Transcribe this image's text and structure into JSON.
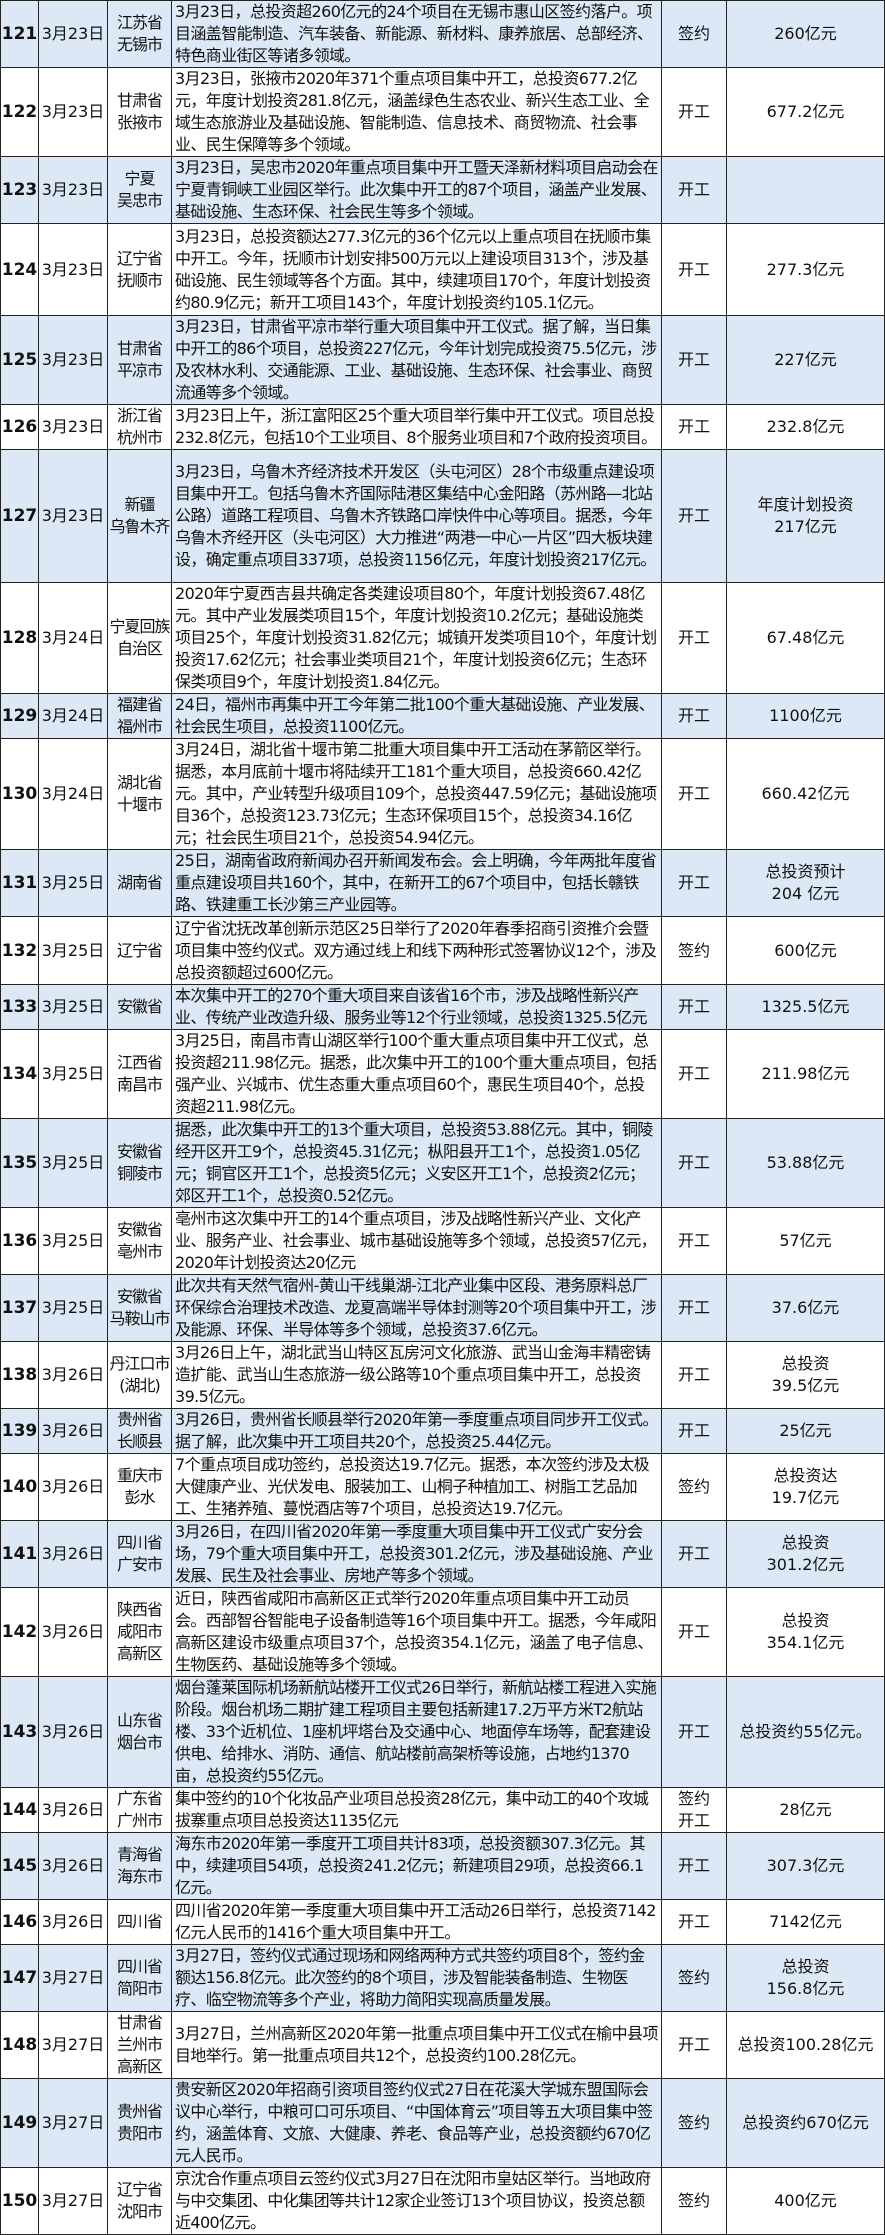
{
  "colors": {
    "row_alt": "#dce8f6",
    "border": "#222222"
  },
  "rows": [
    {
      "no": "121",
      "date": "3月23日",
      "region": "江苏省\n无锡市",
      "desc": "3月23日，总投资超260亿元的24个项目在无锡市惠山区签约落户。项目涵盖智能制造、汽车装备、新能源、新材料、康养旅居、总部经济、特色商业街区等诸多领域。",
      "type": "签约",
      "amount": "260亿元"
    },
    {
      "no": "122",
      "date": "3月23日",
      "region": "甘肃省\n张掖市",
      "desc": "3月23日，张掖市2020年371个重点项目集中开工，总投资677.2亿元，年度计划投资281.8亿元，涵盖绿色生态农业、新兴生态工业、全域生态旅游业及基础设施、智能制造、信息技术、商贸物流、社会事业、民生保障等多个领域。",
      "type": "开工",
      "amount": "677.2亿元"
    },
    {
      "no": "123",
      "date": "3月23日",
      "region": "宁夏\n吴忠市",
      "desc": "3月23日，吴忠市2020年重点项目集中开工暨天泽新材料项目启动会在宁夏青铜峡工业园区举行。此次集中开工的87个项目，涵盖产业发展、基础设施、生态环保、社会民生等多个领域。",
      "type": "开工",
      "amount": ""
    },
    {
      "no": "124",
      "date": "3月23日",
      "region": "辽宁省\n抚顺市",
      "desc": "3月23日，总投资额达277.3亿元的36个亿元以上重点项目在抚顺市集中开工。今年，抚顺市计划安排500万元以上建设项目313个，涉及基础设施、民生领域等各个方面。其中，续建项目170个，年度计划投资约80.9亿元；新开工项目143个，年度计划投资约105.1亿元。",
      "type": "开工",
      "amount": "277.3亿元"
    },
    {
      "no": "125",
      "date": "3月23日",
      "region": "甘肃省\n平凉市",
      "desc": "3月23日，甘肃省平凉市举行重大项目集中开工仪式。据了解，当日集中开工的86个项目，总投资227亿元，今年计划完成投资75.5亿元，涉及农林水利、交通能源、工业、基础设施、生态环保、社会事业、商贸流通等多个领域。",
      "type": "开工",
      "amount": "227亿元"
    },
    {
      "no": "126",
      "date": "3月23日",
      "region": "浙江省\n杭州市",
      "desc": "3月23日上午，浙江富阳区25个重大项目举行集中开工仪式。项目总投232.8亿元，包括10个工业项目、8个服务业项目和7个政府投资项目。",
      "type": "开工",
      "amount": "232.8亿元"
    },
    {
      "no": "127",
      "date": "3月23日",
      "region": "新疆\n乌鲁木齐",
      "desc": "3月23日，乌鲁木齐经济技术开发区（头屯河区）28个市级重点建设项目集中开工。包括乌鲁木齐国际陆港区集结中心金阳路（苏州路—北站公路）道路工程项目、乌鲁木齐铁路口岸快件中心等项目。据悉，今年乌鲁木齐经开区（头屯河区）大力推进“两港一中心一片区”四大板块建设，确定重点项目337项，总投资1156亿元，年度计划投资217亿元。",
      "type": "开工",
      "amount": "年度计划投资\n217亿元"
    },
    {
      "no": "128",
      "date": "3月24日",
      "region": "宁夏回族\n自治区",
      "desc": "2020年宁夏西吉县共确定各类建设项目80个，年度计划投资67.48亿元。其中产业发展类项目15个，年度计划投资10.2亿元；基础设施类项目25个，年度计划投资31.82亿元；城镇开发类项目10个，年度计划投资17.62亿元；社会事业类项目21个，年度计划投资6亿元；生态环保类项目9个，年度计划投资1.84亿元。",
      "type": "开工",
      "amount": "67.48亿元"
    },
    {
      "no": "129",
      "date": "3月24日",
      "region": "福建省\n福州市",
      "desc": "24日，福州市再集中开工今年第二批100个重大基础设施、产业发展、社会民生项目，总投资1100亿元。",
      "type": "开工",
      "amount": "1100亿元"
    },
    {
      "no": "130",
      "date": "3月24日",
      "region": "湖北省\n十堰市",
      "desc": "3月24日，湖北省十堰市第二批重大项目集中开工活动在茅箭区举行。据悉，本月底前十堰市将陆续开工181个重大项目，总投资660.42亿元。其中，产业转型升级项目109个，总投资447.59亿元；基础设施项目36个，总投资123.73亿元；生态环保项目15个，总投资34.16亿元；社会民生项目21个，总投资54.94亿元。",
      "type": "开工",
      "amount": "660.42亿元"
    },
    {
      "no": "131",
      "date": "3月25日",
      "region": "湖南省",
      "desc": "25日，湖南省政府新闻办召开新闻发布会。会上明确，今年两批年度省重点建设项目共160个，其中，在新开工的67个项目中，包括长赣铁路、铁建重工长沙第三产业园等。",
      "type": "开工",
      "amount": "总投资预计\n204 亿元"
    },
    {
      "no": "132",
      "date": "3月25日",
      "region": "辽宁省",
      "desc": "辽宁省沈抚改革创新示范区25日举行了2020年春季招商引资推介会暨项目集中签约仪式。双方通过线上和线下两种形式签署协议12个，涉及总投资额超过600亿元。",
      "type": "签约",
      "amount": "600亿元"
    },
    {
      "no": "133",
      "date": "3月25日",
      "region": "安徽省",
      "desc": "本次集中开工的270个重大项目来自该省16个市，涉及战略性新兴产业、传统产业改造升级、服务业等12个行业领域，总投资1325.5亿元",
      "type": "开工",
      "amount": "1325.5亿元"
    },
    {
      "no": "134",
      "date": "3月25日",
      "region": "江西省\n南昌市",
      "desc": "3月25日，南昌市青山湖区举行100个重大重点项目集中开工仪式，总投资超211.98亿元。据悉，此次集中开工的100个重大重点项目，包括强产业、兴城市、优生态重大重点项目60个，惠民生项目40个，总投资超211.98亿元。",
      "type": "开工",
      "amount": "211.98亿元"
    },
    {
      "no": "135",
      "date": "3月25日",
      "region": "安徽省\n铜陵市",
      "desc": "据悉，此次集中开工的13个重大项目，总投资53.88亿元。其中，铜陵经开区开工9个，总投资45.31亿元；枞阳县开工1个，总投资1.05亿元；铜官区开工1个，总投资5亿元；义安区开工1个，总投资2亿元；郊区开工1个，总投资0.52亿元。",
      "type": "开工",
      "amount": "53.88亿元"
    },
    {
      "no": "136",
      "date": "3月25日",
      "region": "安徽省\n亳州市",
      "desc": "亳州市这次集中开工的14个重点项目，涉及战略性新兴产业、文化产业、服务产业、社会事业、城市基础设施等多个领域，总投资57亿元，2020年计划投资达20亿元",
      "type": "开工",
      "amount": "57亿元"
    },
    {
      "no": "137",
      "date": "3月25日",
      "region": "安徽省\n马鞍山市",
      "desc": "此次共有天然气宿州-黄山干线巢湖-江北产业集中区段、港务原料总厂环保综合治理技术改造、龙夏高端半导体封测等20个项目集中开工，涉及能源、环保、半导体等多个领域，总投资37.6亿元。",
      "type": "开工",
      "amount": "37.6亿元"
    },
    {
      "no": "138",
      "date": "3月26日",
      "region": "丹江口市\n(湖北)",
      "desc": "3月26日上午，湖北武当山特区瓦房河文化旅游、武当山金海丰精密铸造扩能、武当山生态旅游一级公路等10个重点项目集中开工，总投资39.5亿元。",
      "type": "开工",
      "amount": "总投资\n39.5亿元"
    },
    {
      "no": "139",
      "date": "3月26日",
      "region": "贵州省\n长顺县",
      "desc": "3月26日，贵州省长顺县举行2020年第一季度重点项目同步开工仪式。据了解，此次集中开工项目共20个，总投资25.44亿元。",
      "type": "开工",
      "amount": "25亿元"
    },
    {
      "no": "140",
      "date": "3月26日",
      "region": "重庆市\n彭水",
      "desc": "7个重点项目成功签约，总投资达19.7亿元。据悉，本次签约涉及太极大健康产业、光伏发电、服装加工、山桐子种植加工、树脂工艺品加工、生猪养殖、蔓悦酒店等7个项目，总投资达19.7亿元。",
      "type": "签约",
      "amount": "总投资达\n19.7亿元"
    },
    {
      "no": "141",
      "date": "3月26日",
      "region": "四川省\n广安市",
      "desc": "3月26日，在四川省2020年第一季度重大项目集中开工仪式广安分会场，79个重大项目集中开工，总投资301.2亿元，涉及基础设施、产业发展、民生及社会事业、房地产等多个领域。",
      "type": "开工",
      "amount": "总投资\n301.2亿元"
    },
    {
      "no": "142",
      "date": "3月26日",
      "region": "陕西省\n咸阳市\n高新区",
      "desc": "近日，陕西省咸阳市高新区正式举行2020年重点项目集中开工动员会。西部智谷智能电子设备制造等16个项目集中开工。据悉，今年咸阳高新区建设市级重点项目37个，总投资354.1亿元，涵盖了电子信息、生物医药、基础设施等多个领域。",
      "type": "开工",
      "amount": "总投资\n354.1亿元"
    },
    {
      "no": "143",
      "date": "3月26日",
      "region": "山东省\n烟台市",
      "desc": "烟台蓬莱国际机场新航站楼开工仪式26日举行，新航站楼工程进入实施阶段。烟台机场二期扩建工程项目主要包括新建17.2万平方米T2航站楼、33个近机位、1座机坪塔台及交通中心、地面停车场等，配套建设供电、给排水、消防、通信、航站楼前高架桥等设施，占地约1370亩，总投资约55亿元。",
      "type": "开工",
      "amount": "总投资约55亿元。"
    },
    {
      "no": "144",
      "date": "3月26日",
      "region": "广东省\n广州市",
      "desc": "集中签约的10个化妆品产业项目总投资28亿元，集中动工的40个攻城拔寨重点项目总投资达1135亿元",
      "type": "签约\n开工",
      "amount": "28亿元"
    },
    {
      "no": "145",
      "date": "3月26日",
      "region": "青海省\n海东市",
      "desc": "海东市2020年第一季度开工项目共计83项，总投资额307.3亿元。其中，续建项目54项，总投资241.2亿元；新建项目29项，总投资66.1亿元。",
      "type": "开工",
      "amount": "307.3亿元"
    },
    {
      "no": "146",
      "date": "3月26日",
      "region": "四川省",
      "desc": "四川省2020年第一季度重大项目集中开工活动26日举行，总投资7142亿元人民币的1416个重大项目集中开工。",
      "type": "开工",
      "amount": "7142亿元"
    },
    {
      "no": "147",
      "date": "3月27日",
      "region": "四川省\n简阳市",
      "desc": "3月27日，签约仪式通过现场和网络两种方式共签约项目8个，签约金额达156.8亿元。此次签约的8个项目，涉及智能装备制造、生物医疗、临空物流等多个产业，将助力简阳实现高质量发展。",
      "type": "签约",
      "amount": "总投资\n156.8亿元"
    },
    {
      "no": "148",
      "date": "3月27日",
      "region": "甘肃省\n兰州市\n高新区",
      "desc": "3月27日，兰州高新区2020年第一批重点项目集中开工仪式在榆中县项目地举行。第一批重点项目共12个，总投资约100.28亿元。",
      "type": "开工",
      "amount": "总投资100.28亿元"
    },
    {
      "no": "149",
      "date": "3月27日",
      "region": "贵州省\n贵阳市",
      "desc": "贵安新区2020年招商引资项目签约仪式27日在花溪大学城东盟国际会议中心举行，中粮可口可乐项目、“中国体育云”项目等五大项目集中签约，涵盖体育、文旅、大健康、养老、食品等产业，总投资额约670亿元人民币。",
      "type": "签约",
      "amount": "总投资约670亿元"
    },
    {
      "no": "150",
      "date": "3月27日",
      "region": "辽宁省\n沈阳市",
      "desc": "京沈合作重点项目云签约仪式3月27日在沈阳市皇姑区举行。当地政府与中交集团、中化集团等共计12家企业签订13个项目协议，投资总额近400亿元。",
      "type": "签约",
      "amount": "400亿元"
    }
  ]
}
